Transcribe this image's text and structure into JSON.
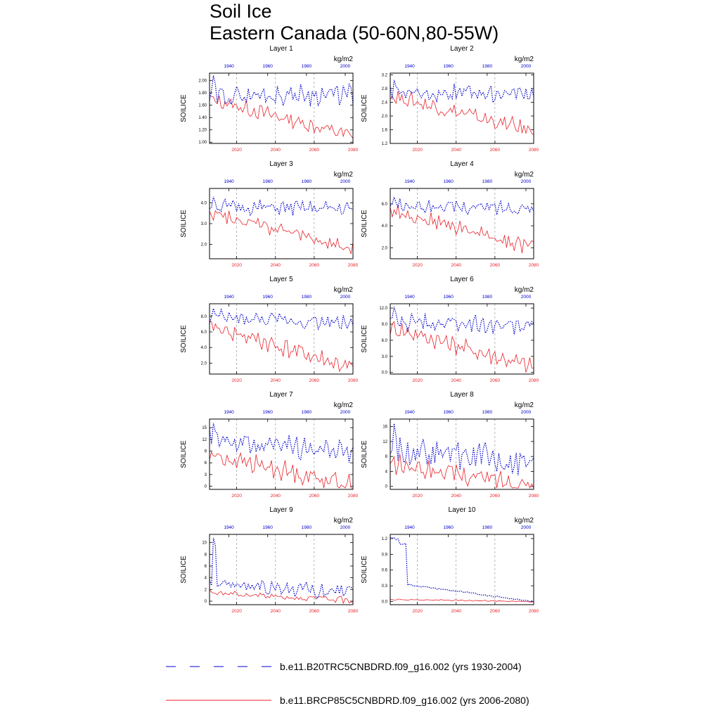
{
  "title": {
    "line1": "Soil Ice",
    "line2": "Eastern Canada (50-60N,80-55W)"
  },
  "colors": {
    "historical": "#0000cc",
    "future": "#e8222a",
    "axis": "#000000",
    "grid": "#888888"
  },
  "legend": {
    "historical_label": "b.e11.B20TRC5CNBDRD.f09_g16.002 (yrs 1930-2004)",
    "future_label": "b.e11.BRCP85C5CNBDRD.f09_g16.002 (yrs 2006-2080)"
  },
  "chart_data": {
    "type": "line",
    "ylabel": "SOILICE",
    "units": "kg/m2",
    "future_x_axis": {
      "range": [
        2006,
        2080
      ],
      "ticks": [
        2020,
        2040,
        2060,
        2080
      ]
    },
    "historical_x_axis": {
      "range": [
        1930,
        2004
      ],
      "ticks": [
        1940,
        1960,
        1980,
        2000
      ]
    },
    "panels": [
      {
        "title": "Layer 1",
        "ylim": [
          0.98,
          2.12
        ],
        "yticks": [
          1.0,
          1.2,
          1.4,
          1.6,
          1.8,
          2.0
        ],
        "tick_labels": [
          "1.00",
          "1.20",
          "1.40",
          "1.60",
          "1.80",
          "2.00"
        ],
        "historical_start": 1.75,
        "historical_end": 1.78,
        "historical_amp": 0.14,
        "historical_spike": 2.08,
        "future_start": 1.7,
        "future_end": 1.1,
        "future_amp": 0.1
      },
      {
        "title": "Layer 2",
        "ylim": [
          1.2,
          3.25
        ],
        "yticks": [
          1.2,
          1.6,
          2.0,
          2.4,
          2.8,
          3.2
        ],
        "tick_labels": [
          "1.2",
          "1.6",
          "2.0",
          "2.4",
          "2.8",
          "3.2"
        ],
        "historical_start": 2.7,
        "historical_end": 2.65,
        "historical_amp": 0.2,
        "historical_spike": 3.05,
        "future_start": 2.6,
        "future_end": 1.55,
        "future_amp": 0.2
      },
      {
        "title": "Layer 3",
        "ylim": [
          1.3,
          4.7
        ],
        "yticks": [
          2.0,
          3.0,
          4.0
        ],
        "tick_labels": [
          "2.0",
          "3.0",
          "4.0"
        ],
        "historical_start": 3.8,
        "historical_end": 3.7,
        "historical_amp": 0.3,
        "historical_spike": 4.3,
        "future_start": 3.6,
        "future_end": 1.7,
        "future_amp": 0.3
      },
      {
        "title": "Layer 4",
        "ylim": [
          1.0,
          7.4
        ],
        "yticks": [
          2.0,
          4.0,
          6.0
        ],
        "tick_labels": [
          "2.0",
          "4.0",
          "6.0"
        ],
        "historical_start": 5.8,
        "historical_end": 5.6,
        "historical_amp": 0.5,
        "historical_spike": 6.6,
        "future_start": 5.5,
        "future_end": 2.0,
        "future_amp": 0.6
      },
      {
        "title": "Layer 5",
        "ylim": [
          0.6,
          9.6
        ],
        "yticks": [
          2.0,
          4.0,
          6.0,
          8.0
        ],
        "tick_labels": [
          "2.0",
          "4.0",
          "6.0",
          "8.0"
        ],
        "historical_start": 7.8,
        "historical_end": 7.1,
        "historical_amp": 0.8,
        "historical_spike": 9.0,
        "future_start": 6.8,
        "future_end": 1.3,
        "future_amp": 1.0
      },
      {
        "title": "Layer 6",
        "ylim": [
          -0.3,
          12.8
        ],
        "yticks": [
          0.0,
          3.0,
          6.0,
          9.0,
          12.0
        ],
        "tick_labels": [
          "0.0",
          "3.0",
          "6.0",
          "9.0",
          "12.0"
        ],
        "historical_start": 9.5,
        "historical_end": 8.6,
        "historical_amp": 1.3,
        "historical_spike": 12.2,
        "future_start": 8.5,
        "future_end": 1.0,
        "future_amp": 1.4
      },
      {
        "title": "Layer 7",
        "ylim": [
          -0.8,
          17.2
        ],
        "yticks": [
          0,
          3,
          6,
          9,
          12,
          15
        ],
        "tick_labels": [
          "0",
          "3",
          "6",
          "9",
          "12",
          "15"
        ],
        "historical_start": 12.0,
        "historical_end": 8.5,
        "historical_amp": 2.2,
        "historical_spike": 16.2,
        "future_start": 8.0,
        "future_end": 0.3,
        "future_amp": 2.0
      },
      {
        "title": "Layer 8",
        "ylim": [
          -0.8,
          18.0
        ],
        "yticks": [
          0,
          4,
          8,
          12,
          16
        ],
        "tick_labels": [
          "0",
          "4",
          "8",
          "12",
          "16"
        ],
        "historical_start": 10.0,
        "historical_end": 6.5,
        "historical_amp": 3.5,
        "historical_spike": 16.8,
        "future_start": 6.0,
        "future_end": 0.2,
        "future_amp": 2.2
      },
      {
        "title": "Layer 9",
        "ylim": [
          -0.6,
          11.4
        ],
        "yticks": [
          0,
          2,
          4,
          6,
          8,
          10
        ],
        "tick_labels": [
          "0",
          "2",
          "4",
          "6",
          "8",
          "10"
        ],
        "historical_start": 3.0,
        "historical_end": 1.5,
        "historical_amp": 1.3,
        "historical_spike": 10.8,
        "future_start": 1.5,
        "future_end": 0.1,
        "future_amp": 0.5
      },
      {
        "title": "Layer 10",
        "ylim": [
          -0.06,
          1.28
        ],
        "yticks": [
          0.0,
          0.3,
          0.6,
          0.9,
          1.2
        ],
        "tick_labels": [
          "0.0",
          "0.3",
          "0.6",
          "0.9",
          "1.2"
        ],
        "historical_start": 1.22,
        "historical_end": 0.0,
        "historical_amp": 0.04,
        "historical_spike": 1.22,
        "future_start": 0.04,
        "future_end": 0.0,
        "future_amp": 0.01
      }
    ]
  }
}
